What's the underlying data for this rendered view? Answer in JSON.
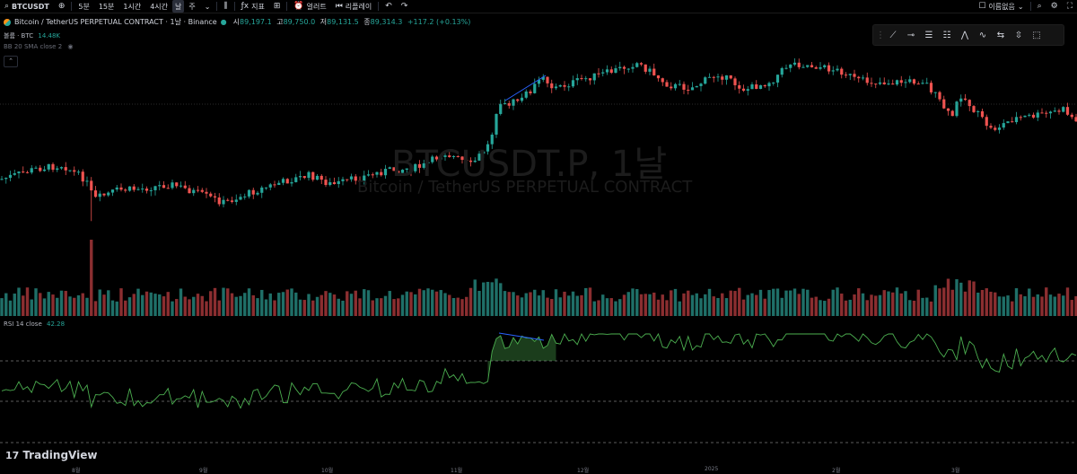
{
  "toolbar": {
    "symbol": "BTCUSDT",
    "intervals": [
      "5분",
      "15분",
      "1시간",
      "4시간",
      "날",
      "주"
    ],
    "active_interval": "날",
    "indicators_label": "지표",
    "alert_label": "얼러트",
    "replay_label": "리플레이",
    "layout_label": "이름없음"
  },
  "legend": {
    "title": "Bitcoin / TetherUS PERPETUAL CONTRACT · 1날 · Binance",
    "o_label": "시",
    "o_value": "89,197.1",
    "h_label": "고",
    "h_value": "89,750.0",
    "l_label": "저",
    "l_value": "89,131.5",
    "c_label": "종",
    "c_value": "89,314.3",
    "change": "+117.2 (+0.13%)"
  },
  "volume_legend": {
    "label": "볼륨 · BTC",
    "value": "14.48K"
  },
  "bb_legend": {
    "label": "BB 20 SMA close 2"
  },
  "rsi_legend": {
    "label": "RSI 14 close",
    "value": "42.28"
  },
  "watermark": {
    "symbol": "BTCUSDT.P, 1날",
    "name": "Bitcoin / TetherUS PERPETUAL CONTRACT"
  },
  "brand": {
    "name": "TradingView"
  },
  "axis": {
    "months": [
      "8월",
      "9월",
      "10월",
      "11월",
      "12월",
      "2025",
      "2월",
      "3월"
    ]
  },
  "colors": {
    "up": "#26a69a",
    "down": "#ef5350",
    "rsi": "#4caf50",
    "trendline": "#2962ff",
    "bg": "#000000"
  },
  "icons": [
    "search-icon",
    "plus-circle-icon",
    "candles-icon",
    "indicator-icon",
    "template-icon",
    "alert-icon",
    "replay-icon",
    "undo-icon",
    "redo-icon",
    "layout-icon",
    "settings-icon",
    "camera-icon",
    "fullscreen-icon"
  ]
}
